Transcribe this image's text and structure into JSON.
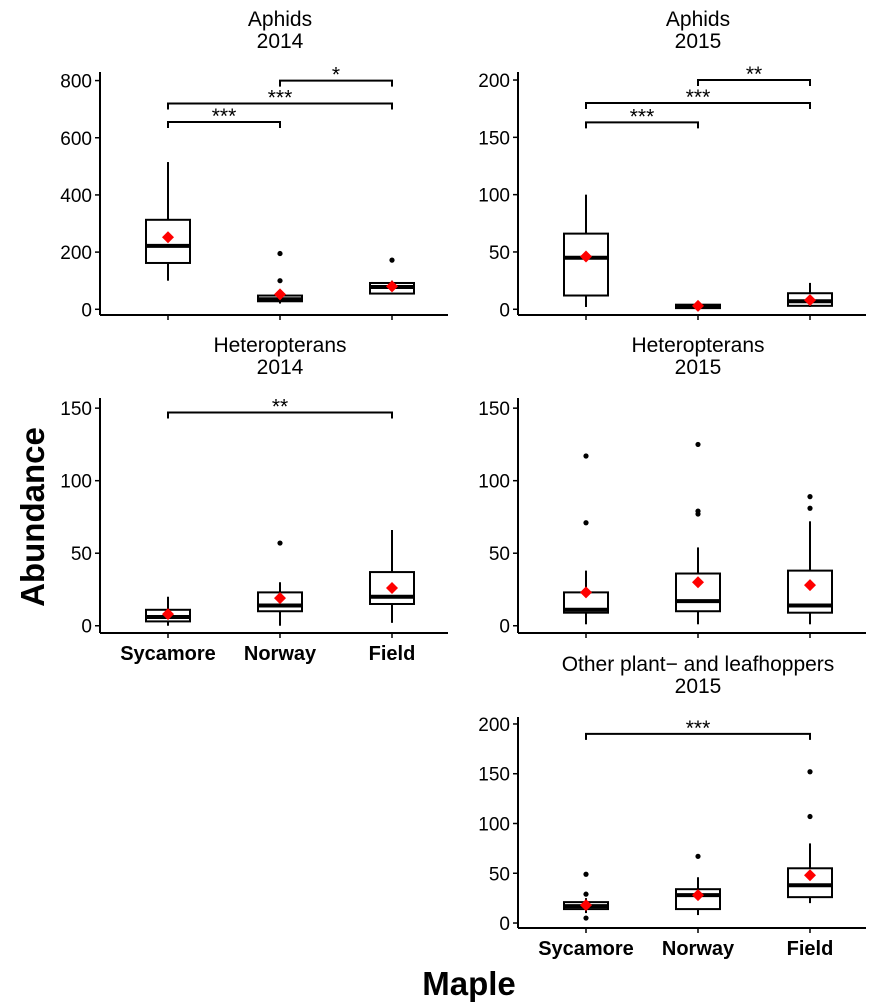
{
  "figure": {
    "ylabel": "Abundance",
    "xlabel": "Maple"
  },
  "chart_data": [
    {
      "type": "box",
      "title": [
        "Aphids",
        "2014"
      ],
      "categories": [
        "Sycamore",
        "Norway",
        "Field"
      ],
      "show_category_labels": false,
      "ylim": [
        -20,
        830
      ],
      "yticks": [
        0,
        200,
        400,
        600,
        800
      ],
      "boxes": [
        {
          "whisker_low": 100,
          "q1": 162,
          "median": 222,
          "q3": 313,
          "whisker_high": 515,
          "mean": 252,
          "outliers": []
        },
        {
          "whisker_low": 20,
          "q1": 28,
          "median": 35,
          "q3": 48,
          "whisker_high": 60,
          "mean": 52,
          "outliers": [
            100,
            195
          ]
        },
        {
          "whisker_low": 55,
          "q1": 55,
          "median": 78,
          "q3": 92,
          "whisker_high": 100,
          "mean": 80,
          "outliers": [
            172
          ]
        }
      ],
      "brackets": [
        {
          "from": 1,
          "to": 2,
          "y": 800,
          "label": "*"
        },
        {
          "from": 0,
          "to": 2,
          "y": 720,
          "label": "***"
        },
        {
          "from": 0,
          "to": 1,
          "y": 655,
          "label": "***"
        }
      ]
    },
    {
      "type": "box",
      "title": [
        "Aphids",
        "2015"
      ],
      "categories": [
        "Sycamore",
        "Norway",
        "Field"
      ],
      "show_category_labels": false,
      "ylim": [
        -5,
        207
      ],
      "yticks": [
        0,
        50,
        100,
        150,
        200
      ],
      "boxes": [
        {
          "whisker_low": 2,
          "q1": 12,
          "median": 45,
          "q3": 66,
          "whisker_high": 100,
          "mean": 46,
          "outliers": []
        },
        {
          "whisker_low": 0,
          "q1": 1,
          "median": 2,
          "q3": 4,
          "whisker_high": 5,
          "mean": 3,
          "outliers": []
        },
        {
          "whisker_low": 2,
          "q1": 3,
          "median": 7,
          "q3": 14,
          "whisker_high": 23,
          "mean": 8,
          "outliers": []
        }
      ],
      "brackets": [
        {
          "from": 1,
          "to": 2,
          "y": 200,
          "label": "**"
        },
        {
          "from": 0,
          "to": 2,
          "y": 180,
          "label": "***"
        },
        {
          "from": 0,
          "to": 1,
          "y": 163,
          "label": "***"
        }
      ]
    },
    {
      "type": "box",
      "title": [
        "Heteropterans",
        "2014"
      ],
      "categories": [
        "Sycamore",
        "Norway",
        "Field"
      ],
      "show_category_labels": true,
      "ylim": [
        -5,
        157
      ],
      "yticks": [
        0,
        50,
        100,
        150
      ],
      "boxes": [
        {
          "whisker_low": 0,
          "q1": 3,
          "median": 6,
          "q3": 11,
          "whisker_high": 20,
          "mean": 8,
          "outliers": []
        },
        {
          "whisker_low": 0,
          "q1": 10,
          "median": 14,
          "q3": 23,
          "whisker_high": 30,
          "mean": 19,
          "outliers": [
            57
          ]
        },
        {
          "whisker_low": 2,
          "q1": 15,
          "median": 20,
          "q3": 37,
          "whisker_high": 66,
          "mean": 26,
          "outliers": []
        }
      ],
      "brackets": [
        {
          "from": 0,
          "to": 2,
          "y": 147,
          "label": "**"
        }
      ]
    },
    {
      "type": "box",
      "title": [
        "Heteropterans",
        "2015"
      ],
      "categories": [
        "Sycamore",
        "Norway",
        "Field"
      ],
      "show_category_labels": false,
      "ylim": [
        -5,
        157
      ],
      "yticks": [
        0,
        50,
        100,
        150
      ],
      "boxes": [
        {
          "whisker_low": 1,
          "q1": 9,
          "median": 11,
          "q3": 23,
          "whisker_high": 38,
          "mean": 23,
          "outliers": [
            71,
            117
          ]
        },
        {
          "whisker_low": 1,
          "q1": 10,
          "median": 17,
          "q3": 36,
          "whisker_high": 54,
          "mean": 30,
          "outliers": [
            77,
            79,
            125
          ]
        },
        {
          "whisker_low": 1,
          "q1": 9,
          "median": 14,
          "q3": 38,
          "whisker_high": 72,
          "mean": 28,
          "outliers": [
            81,
            89
          ]
        }
      ],
      "brackets": []
    },
    {
      "type": "box",
      "title": [
        "Other plant− and leafhoppers",
        "2015"
      ],
      "categories": [
        "Sycamore",
        "Norway",
        "Field"
      ],
      "show_category_labels": true,
      "ylim": [
        -5,
        207
      ],
      "yticks": [
        0,
        50,
        100,
        150,
        200
      ],
      "boxes": [
        {
          "whisker_low": 10,
          "q1": 14,
          "median": 17,
          "q3": 21,
          "whisker_high": 25,
          "mean": 18,
          "outliers": [
            5,
            29,
            49
          ]
        },
        {
          "whisker_low": 8,
          "q1": 14,
          "median": 28,
          "q3": 34,
          "whisker_high": 46,
          "mean": 28,
          "outliers": [
            67
          ]
        },
        {
          "whisker_low": 20,
          "q1": 26,
          "median": 38,
          "q3": 55,
          "whisker_high": 80,
          "mean": 48,
          "outliers": [
            107,
            152
          ]
        }
      ],
      "brackets": [
        {
          "from": 0,
          "to": 2,
          "y": 190,
          "label": "***"
        }
      ]
    }
  ]
}
